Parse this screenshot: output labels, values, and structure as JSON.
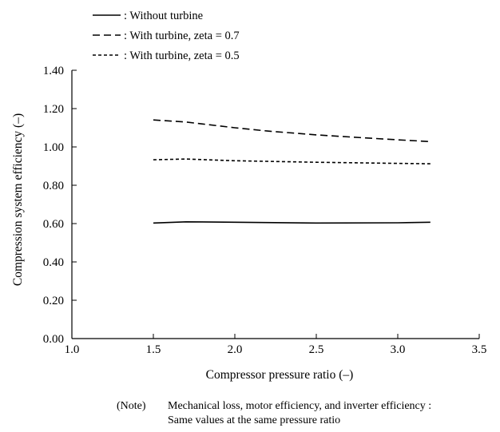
{
  "chart_data": {
    "type": "line",
    "title": "",
    "xlabel": "Compressor pressure ratio  (–)",
    "ylabel": "Compression system efficiency  (–)",
    "xlim": [
      1.0,
      3.5
    ],
    "ylim": [
      0.0,
      1.4
    ],
    "xticks": [
      1.0,
      1.5,
      2.0,
      2.5,
      3.0,
      3.5
    ],
    "xtick_labels": [
      "1.0",
      "1.5",
      "2.0",
      "2.5",
      "3.0",
      "3.5"
    ],
    "yticks": [
      0.0,
      0.2,
      0.4,
      0.6,
      0.8,
      1.0,
      1.2,
      1.4
    ],
    "ytick_labels": [
      "0.00",
      "0.20",
      "0.40",
      "0.60",
      "0.80",
      "1.00",
      "1.20",
      "1.40"
    ],
    "grid": false,
    "legend_position": "top-left",
    "series": [
      {
        "name": ": Without turbine",
        "style": "solid",
        "x": [
          1.5,
          1.7,
          2.0,
          2.5,
          3.0,
          3.2
        ],
        "y": [
          0.603,
          0.609,
          0.607,
          0.603,
          0.604,
          0.607
        ]
      },
      {
        "name": ": With turbine, zeta = 0.7",
        "style": "dashed",
        "x": [
          1.5,
          1.7,
          2.0,
          2.2,
          2.5,
          2.8,
          3.0,
          3.2
        ],
        "y": [
          1.141,
          1.13,
          1.1,
          1.083,
          1.063,
          1.047,
          1.037,
          1.028
        ]
      },
      {
        "name": ": With turbine, zeta = 0.5",
        "style": "dotted",
        "x": [
          1.5,
          1.7,
          2.0,
          2.5,
          3.0,
          3.2
        ],
        "y": [
          0.933,
          0.937,
          0.928,
          0.92,
          0.914,
          0.912
        ]
      }
    ]
  },
  "note": {
    "label": "(Note)",
    "line1": "Mechanical loss, motor efficiency, and inverter efficiency :",
    "line2": "Same values at the same pressure ratio"
  }
}
